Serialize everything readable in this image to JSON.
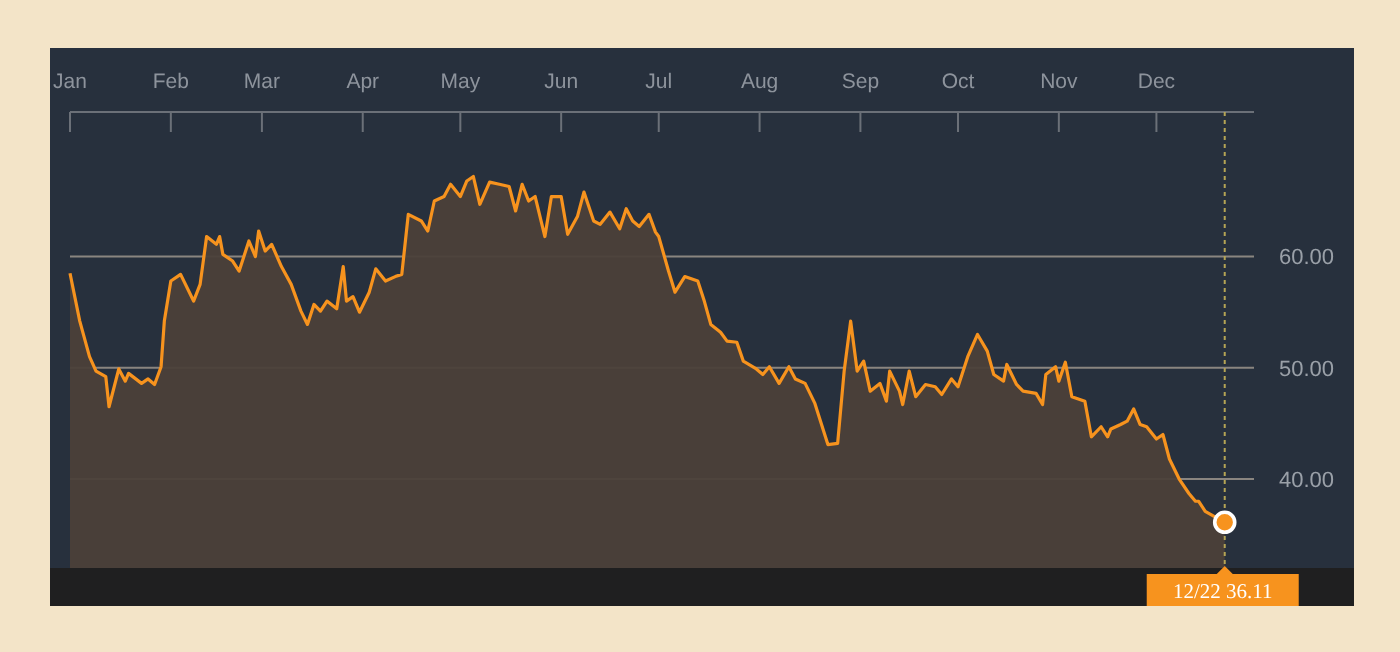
{
  "chart_data": {
    "type": "area",
    "x": [
      "--01-01",
      "--01-04",
      "--01-07",
      "--01-09",
      "--01-12",
      "--01-13",
      "--01-16",
      "--01-18",
      "--01-19",
      "--01-23",
      "--01-25",
      "--01-27",
      "--01-29",
      "--01-30",
      "--02-01",
      "--02-04",
      "--02-08",
      "--02-10",
      "--02-12",
      "--02-15",
      "--02-16",
      "--02-17",
      "--02-20",
      "--02-22",
      "--02-25",
      "--02-27",
      "--02-28",
      "--03-02",
      "--03-04",
      "--03-07",
      "--03-10",
      "--03-13",
      "--03-15",
      "--03-17",
      "--03-19",
      "--03-21",
      "--03-24",
      "--03-26",
      "--03-27",
      "--03-29",
      "--03-31",
      "--04-03",
      "--04-05",
      "--04-08",
      "--04-11",
      "--04-13",
      "--04-15",
      "--04-19",
      "--04-21",
      "--04-23",
      "--04-26",
      "--04-28",
      "--05-01",
      "--05-03",
      "--05-05",
      "--05-07",
      "--05-10",
      "--05-13",
      "--05-16",
      "--05-18",
      "--05-20",
      "--05-22",
      "--05-24",
      "--05-27",
      "--05-29",
      "--06-01",
      "--06-03",
      "--06-06",
      "--06-08",
      "--06-11",
      "--06-13",
      "--06-16",
      "--06-19",
      "--06-21",
      "--06-23",
      "--06-25",
      "--06-28",
      "--06-30",
      "--07-01",
      "--07-04",
      "--07-06",
      "--07-09",
      "--07-13",
      "--07-15",
      "--07-17",
      "--07-20",
      "--07-22",
      "--07-25",
      "--07-27",
      "--07-31",
      "--08-02",
      "--08-04",
      "--08-07",
      "--08-10",
      "--08-12",
      "--08-15",
      "--08-18",
      "--08-22",
      "--08-25",
      "--08-27",
      "--08-29",
      "--08-31",
      "--09-02",
      "--09-04",
      "--09-07",
      "--09-09",
      "--09-10",
      "--09-13",
      "--09-14",
      "--09-16",
      "--09-18",
      "--09-21",
      "--09-24",
      "--09-26",
      "--09-29",
      "--10-01",
      "--10-04",
      "--10-07",
      "--10-10",
      "--10-12",
      "--10-15",
      "--10-16",
      "--10-19",
      "--10-21",
      "--10-25",
      "--10-27",
      "--10-28",
      "--10-31",
      "--11-01",
      "--11-03",
      "--11-05",
      "--11-09",
      "--11-11",
      "--11-14",
      "--11-16",
      "--11-17",
      "--11-20",
      "--11-22",
      "--11-24",
      "--11-26",
      "--11-28",
      "--12-01",
      "--12-03",
      "--12-05",
      "--12-08",
      "--12-11",
      "--12-13",
      "--12-14",
      "--12-16",
      "--12-19",
      "--12-22"
    ],
    "series": [
      {
        "color": "#f7931e",
        "values": [
          58.5,
          54.2,
          51.0,
          49.7,
          49.2,
          46.5,
          49.9,
          48.8,
          49.5,
          48.6,
          49.0,
          48.5,
          50.1,
          54.2,
          57.8,
          58.4,
          56.0,
          57.5,
          61.8,
          61.1,
          61.8,
          60.2,
          59.6,
          58.7,
          61.4,
          60.0,
          62.3,
          60.5,
          61.1,
          59.1,
          57.5,
          55.1,
          53.9,
          55.7,
          55.1,
          56.0,
          55.3,
          59.1,
          56.0,
          56.4,
          55.0,
          56.8,
          58.9,
          57.8,
          58.2,
          58.4,
          63.8,
          63.2,
          62.3,
          65.0,
          65.4,
          66.5,
          65.4,
          66.8,
          67.2,
          64.7,
          66.7,
          66.5,
          66.3,
          64.1,
          66.5,
          65.0,
          65.4,
          61.8,
          65.4,
          65.4,
          62.0,
          63.6,
          65.8,
          63.2,
          62.9,
          64.0,
          62.5,
          64.3,
          63.2,
          62.7,
          63.8,
          62.2,
          61.8,
          58.7,
          56.8,
          58.2,
          57.8,
          56.0,
          53.9,
          53.2,
          52.4,
          52.3,
          50.6,
          49.9,
          49.4,
          50.1,
          48.6,
          50.1,
          49.0,
          48.6,
          46.8,
          43.1,
          43.2,
          49.7,
          54.2,
          49.7,
          50.6,
          47.9,
          48.6,
          47.0,
          49.7,
          47.9,
          46.7,
          49.7,
          47.4,
          48.5,
          48.3,
          47.6,
          49.0,
          48.3,
          51.0,
          53.0,
          51.5,
          49.4,
          48.8,
          50.3,
          48.5,
          47.9,
          47.7,
          46.7,
          49.4,
          50.1,
          48.8,
          50.5,
          47.4,
          47.0,
          43.8,
          44.7,
          43.8,
          44.5,
          44.9,
          45.2,
          46.3,
          44.9,
          44.7,
          43.6,
          44.0,
          41.8,
          40.0,
          38.7,
          38.0,
          38.0,
          37.1,
          36.6,
          36.11
        ]
      }
    ],
    "xlim": [
      "--01-01",
      "--12-31"
    ],
    "xticks": [
      {
        "value": "--01-01",
        "label": "Jan"
      },
      {
        "value": "--02-01",
        "label": "Feb"
      },
      {
        "value": "--03-01",
        "label": "Mar"
      },
      {
        "value": "--04-01",
        "label": "Apr"
      },
      {
        "value": "--05-01",
        "label": "May"
      },
      {
        "value": "--06-01",
        "label": "Jun"
      },
      {
        "value": "--07-01",
        "label": "Jul"
      },
      {
        "value": "--08-01",
        "label": "Aug"
      },
      {
        "value": "--09-01",
        "label": "Sep"
      },
      {
        "value": "--10-01",
        "label": "Oct"
      },
      {
        "value": "--11-01",
        "label": "Nov"
      },
      {
        "value": "--12-01",
        "label": "Dec"
      }
    ],
    "ylim": [
      32,
      73
    ],
    "yticks": [
      {
        "value": 40,
        "label": "40.00"
      },
      {
        "value": 50,
        "label": "50.00"
      },
      {
        "value": 60,
        "label": "60.00"
      }
    ],
    "grid": "y",
    "ref_lines": [
      {
        "axis": "x",
        "value": "--12-22",
        "color": "#b5a455",
        "line_style": "dotted"
      }
    ],
    "annotations": [
      {
        "text": "12/22 36.11",
        "x": "--12-22",
        "y": 36.11
      }
    ]
  }
}
